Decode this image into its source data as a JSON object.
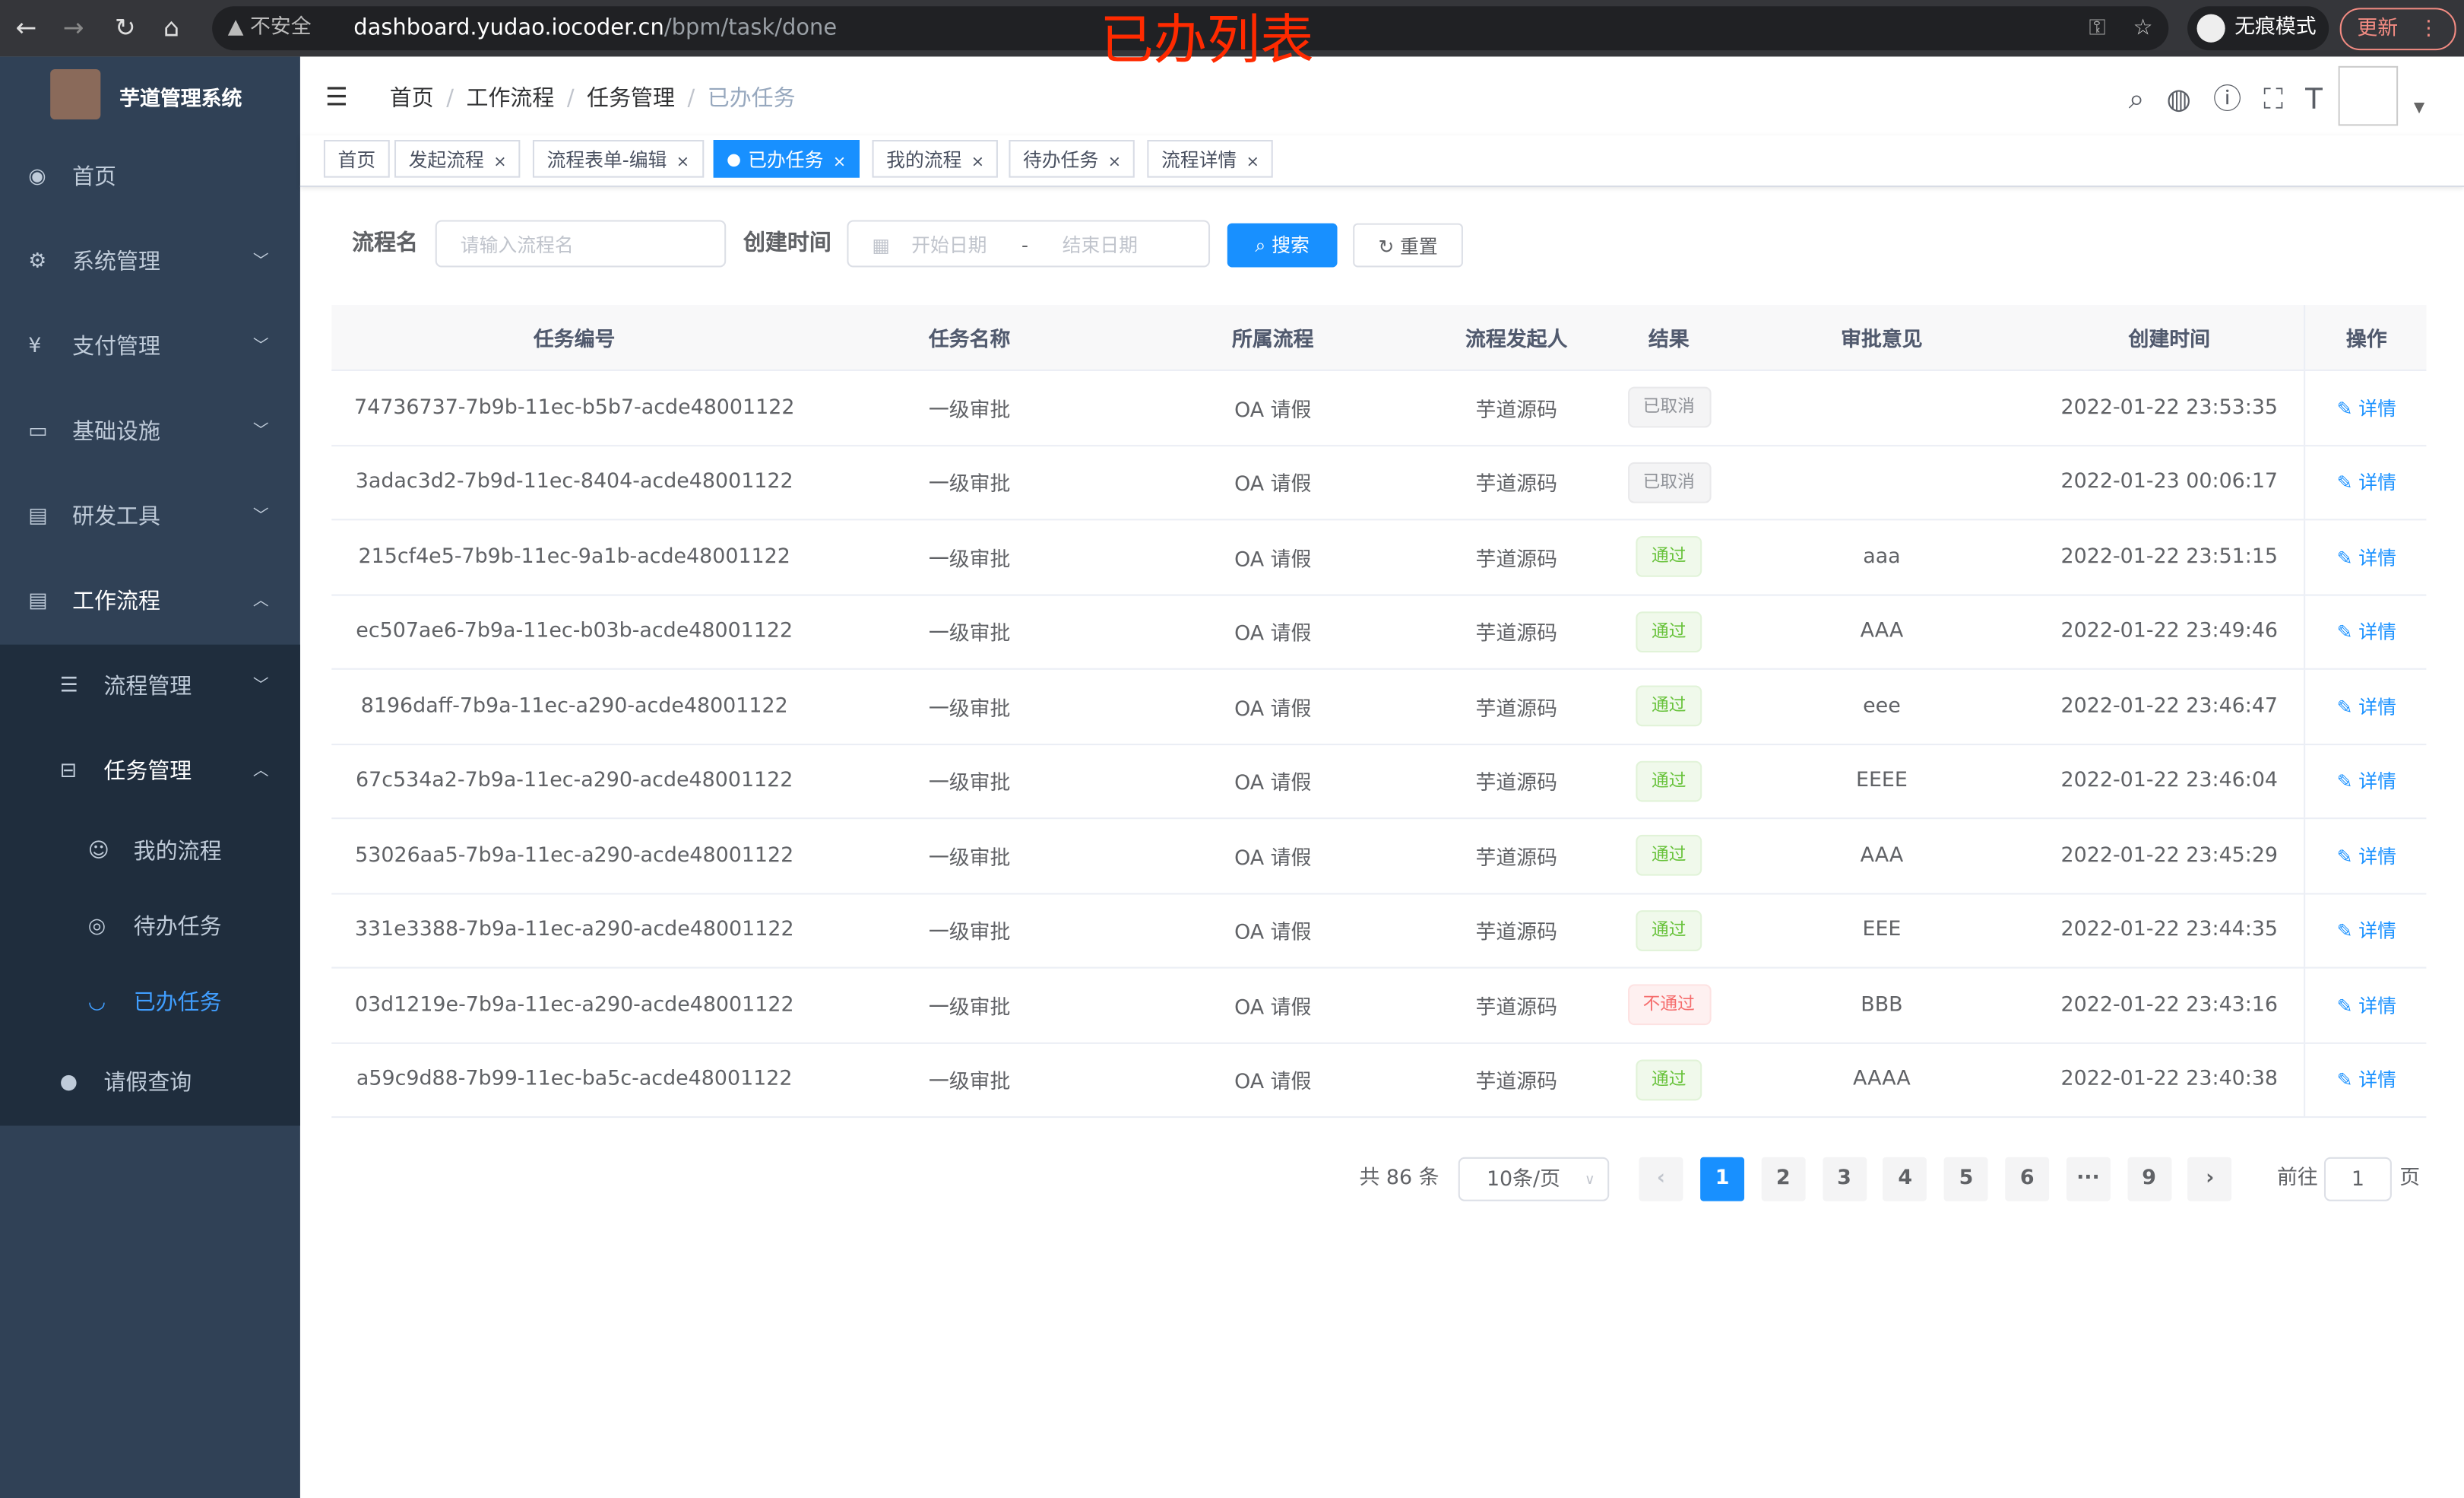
{
  "browser": {
    "security": "不安全",
    "url_host": "dashboard.yudao.iocoder.cn",
    "url_path": "/bpm/task/done",
    "incognito": "无痕模式",
    "update": "更新"
  },
  "overlay_title": "已办列表",
  "sidebar": {
    "title": "芋道管理系统",
    "items": [
      {
        "label": "首页",
        "icon": "dashboard-icon"
      },
      {
        "label": "系统管理",
        "icon": "gear-icon"
      },
      {
        "label": "支付管理",
        "icon": "yen-icon"
      },
      {
        "label": "基础设施",
        "icon": "monitor-icon"
      },
      {
        "label": "研发工具",
        "icon": "toolbox-icon"
      },
      {
        "label": "工作流程",
        "icon": "toolbox-icon"
      }
    ],
    "workflow_sub": [
      {
        "label": "流程管理",
        "icon": "list-icon"
      },
      {
        "label": "任务管理",
        "icon": "tree-icon"
      }
    ],
    "task_sub": [
      {
        "label": "我的流程",
        "icon": "user-icon"
      },
      {
        "label": "待办任务",
        "icon": "eye-icon"
      },
      {
        "label": "已办任务",
        "icon": "eye-closed-icon"
      }
    ],
    "leave": {
      "label": "请假查询",
      "icon": "person-icon"
    }
  },
  "breadcrumb": [
    "首页",
    "工作流程",
    "任务管理",
    "已办任务"
  ],
  "tags": [
    "首页",
    "发起流程",
    "流程表单-编辑",
    "已办任务",
    "我的流程",
    "待办任务",
    "流程详情"
  ],
  "search": {
    "name_label": "流程名",
    "name_placeholder": "请输入流程名",
    "time_label": "创建时间",
    "start_placeholder": "开始日期",
    "sep": "-",
    "end_placeholder": "结束日期",
    "search_btn": "搜索",
    "reset_btn": "重置"
  },
  "table": {
    "columns": [
      "任务编号",
      "任务名称",
      "所属流程",
      "流程发起人",
      "结果",
      "审批意见",
      "创建时间",
      "操作"
    ],
    "action": "详情",
    "rows": [
      [
        "74736737-7b9b-11ec-b5b7-acde48001122",
        "一级审批",
        "OA 请假",
        "芋道源码",
        "已取消",
        "",
        "2022-01-22 23:53:35"
      ],
      [
        "3adac3d2-7b9d-11ec-8404-acde48001122",
        "一级审批",
        "OA 请假",
        "芋道源码",
        "已取消",
        "",
        "2022-01-23 00:06:17"
      ],
      [
        "215cf4e5-7b9b-11ec-9a1b-acde48001122",
        "一级审批",
        "OA 请假",
        "芋道源码",
        "通过",
        "aaa",
        "2022-01-22 23:51:15"
      ],
      [
        "ec507ae6-7b9a-11ec-b03b-acde48001122",
        "一级审批",
        "OA 请假",
        "芋道源码",
        "通过",
        "AAA",
        "2022-01-22 23:49:46"
      ],
      [
        "8196daff-7b9a-11ec-a290-acde48001122",
        "一级审批",
        "OA 请假",
        "芋道源码",
        "通过",
        "eee",
        "2022-01-22 23:46:47"
      ],
      [
        "67c534a2-7b9a-11ec-a290-acde48001122",
        "一级审批",
        "OA 请假",
        "芋道源码",
        "通过",
        "EEEE",
        "2022-01-22 23:46:04"
      ],
      [
        "53026aa5-7b9a-11ec-a290-acde48001122",
        "一级审批",
        "OA 请假",
        "芋道源码",
        "通过",
        "AAA",
        "2022-01-22 23:45:29"
      ],
      [
        "331e3388-7b9a-11ec-a290-acde48001122",
        "一级审批",
        "OA 请假",
        "芋道源码",
        "通过",
        "EEE",
        "2022-01-22 23:44:35"
      ],
      [
        "03d1219e-7b9a-11ec-a290-acde48001122",
        "一级审批",
        "OA 请假",
        "芋道源码",
        "不通过",
        "BBB",
        "2022-01-22 23:43:16"
      ],
      [
        "a59c9d88-7b99-11ec-ba5c-acde48001122",
        "一级审批",
        "OA 请假",
        "芋道源码",
        "通过",
        "AAAA",
        "2022-01-22 23:40:38"
      ]
    ]
  },
  "pagination": {
    "total": "共 86 条",
    "page_size": "10条/页",
    "pages": [
      "1",
      "2",
      "3",
      "4",
      "5",
      "6",
      "···",
      "9"
    ],
    "current": "1",
    "goto_label": "前往",
    "goto_value": "1",
    "page_unit": "页"
  },
  "colors": {
    "accent": "#1890ff",
    "sidebar": "#304156",
    "overlay": "#ff2a00"
  }
}
